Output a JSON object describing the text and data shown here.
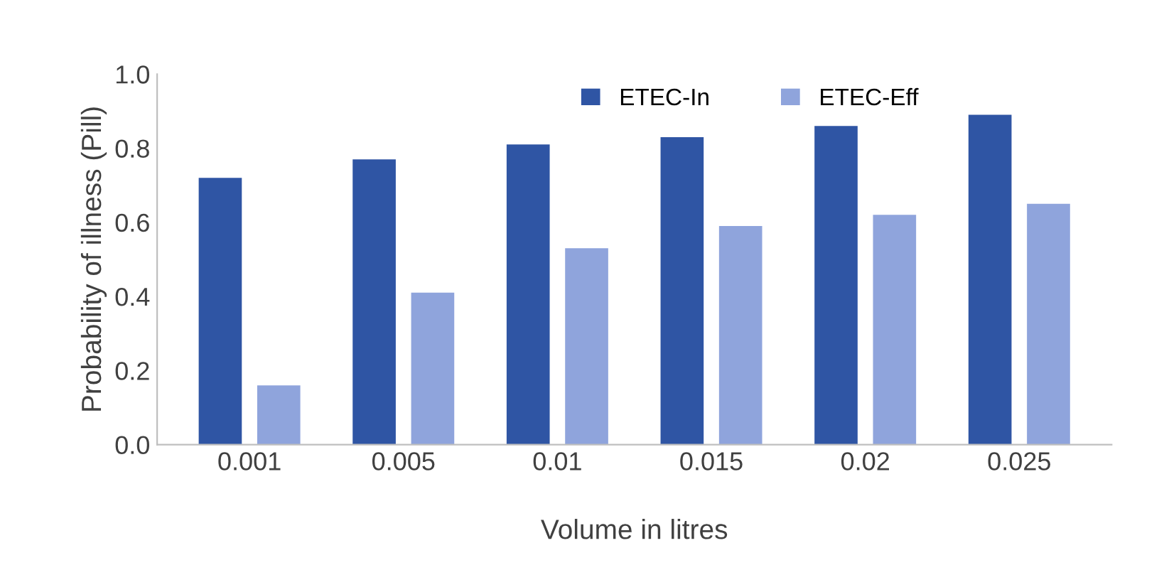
{
  "chart_data": {
    "type": "bar",
    "xlabel": "Volume in litres",
    "ylabel": "Probability of illness (Pill)",
    "categories": [
      "0.001",
      "0.005",
      "0.01",
      "0.015",
      "0.02",
      "0.025"
    ],
    "series": [
      {
        "name": "ETEC-In",
        "color": "#2f55a4",
        "values": [
          0.72,
          0.77,
          0.81,
          0.83,
          0.86,
          0.89
        ]
      },
      {
        "name": "ETEC-Eff",
        "color": "#8fa4dc",
        "values": [
          0.16,
          0.41,
          0.53,
          0.59,
          0.62,
          0.65
        ]
      }
    ],
    "ylim": [
      0,
      1.0
    ],
    "yticks": [
      {
        "value": 0,
        "label": "0.0"
      },
      {
        "value": 0.2,
        "label": "0.2"
      },
      {
        "value": 0.4,
        "label": "0.4"
      },
      {
        "value": 0.6,
        "label": "0.6"
      },
      {
        "value": 0.8,
        "label": "0.8"
      },
      {
        "value": 1.0,
        "label": "1.0"
      }
    ],
    "legend": "top right",
    "grid": false
  }
}
